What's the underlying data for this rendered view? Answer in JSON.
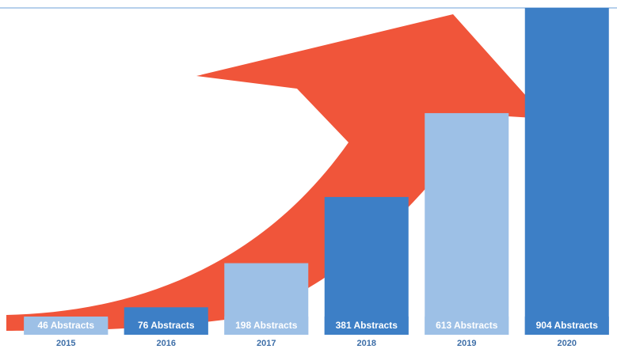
{
  "chart_data": {
    "type": "bar",
    "categories": [
      "2015",
      "2016",
      "2017",
      "2018",
      "2019",
      "2020"
    ],
    "values": [
      46,
      76,
      198,
      381,
      613,
      904
    ],
    "value_labels": [
      "46 Abstracts",
      "76 Abstracts",
      "198 Abstracts",
      "381 Abstracts",
      "613 Abstracts",
      "904 Abstracts"
    ],
    "colors": [
      "#9dc0e6",
      "#3d7fc6",
      "#9dc0e6",
      "#3d7fc6",
      "#9dc0e6",
      "#3d7fc6"
    ]
  }
}
